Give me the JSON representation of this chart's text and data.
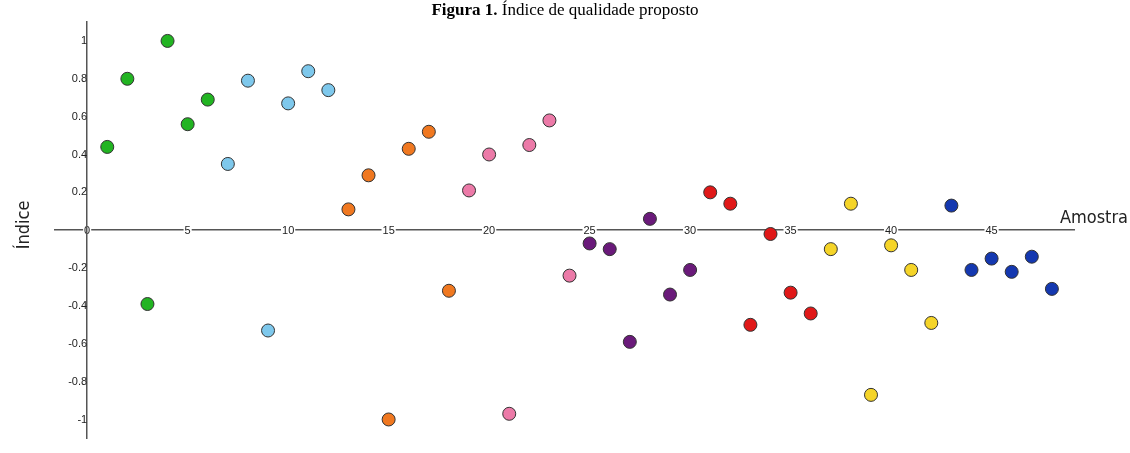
{
  "chart_data": {
    "type": "scatter",
    "title": "Figura 1. Índice de qualidade proposto",
    "xlabel": "Amostra",
    "ylabel": "Índice",
    "marker": "circle",
    "grid": false,
    "legend": false,
    "xlim": [
      -1.6,
      49.1
    ],
    "ylim": [
      -1.1,
      1.1
    ],
    "xticks": [
      0,
      5,
      10,
      15,
      20,
      25,
      30,
      35,
      40,
      45
    ],
    "yticks": [
      -1,
      -0.8,
      -0.6,
      -0.4,
      -0.2,
      0.2,
      0.4,
      0.6,
      0.8,
      1
    ],
    "series": [
      {
        "color": "#22b422",
        "x": [
          1,
          2,
          3,
          4,
          5,
          6
        ],
        "values": [
          0.44,
          0.8,
          -0.39,
          1.0,
          0.56,
          0.69
        ]
      },
      {
        "color": "#7ec8ec",
        "x": [
          7,
          8,
          9,
          10,
          11,
          12
        ],
        "values": [
          0.35,
          0.79,
          -0.53,
          0.67,
          0.84,
          0.74
        ]
      },
      {
        "color": "#f07820",
        "x": [
          13,
          14,
          15,
          16,
          17,
          18
        ],
        "values": [
          0.11,
          0.29,
          -1.0,
          0.43,
          0.52,
          -0.32
        ]
      },
      {
        "color": "#ec7aa8",
        "x": [
          19,
          20,
          21,
          22,
          23,
          24
        ],
        "values": [
          0.21,
          0.4,
          -0.97,
          0.45,
          0.58,
          -0.24
        ]
      },
      {
        "color": "#6a1a7a",
        "x": [
          25,
          26,
          27,
          28,
          29,
          30
        ],
        "values": [
          -0.07,
          -0.1,
          -0.59,
          0.06,
          -0.34,
          -0.21
        ]
      },
      {
        "color": "#e01818",
        "x": [
          31,
          32,
          33,
          34,
          35,
          36
        ],
        "values": [
          0.2,
          0.14,
          -0.5,
          -0.02,
          -0.33,
          -0.44
        ]
      },
      {
        "color": "#f5d428",
        "x": [
          37,
          38,
          39,
          40,
          41,
          42
        ],
        "values": [
          -0.1,
          0.14,
          -0.87,
          -0.08,
          -0.21,
          -0.49
        ]
      },
      {
        "color": "#1438b0",
        "x": [
          43,
          44,
          45,
          46,
          47,
          48
        ],
        "values": [
          0.13,
          -0.21,
          -0.15,
          -0.22,
          -0.14,
          -0.31
        ]
      }
    ]
  }
}
